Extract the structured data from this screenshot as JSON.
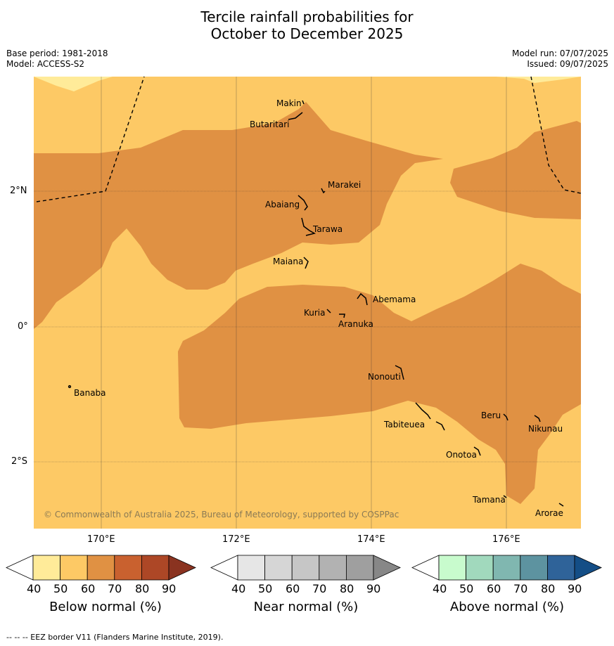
{
  "title_line1": "Tercile rainfall probabilities for",
  "title_line2": "October to December 2025",
  "base_period": "Base period: 1981-2018",
  "model": "Model: ACCESS-S2",
  "model_run": "Model run: 07/07/2025",
  "issued": "Issued: 09/07/2025",
  "copyright": "© Commonwealth of Australia 2025, Bureau of Meteorology, supported by COSPPac",
  "footer": "--  --  -- EEZ border V11 (Flanders Marine Institute, 2019).",
  "axes": {
    "lon_ticks": [
      "170°E",
      "172°E",
      "174°E",
      "176°E"
    ],
    "lat_ticks": [
      "2°N",
      "0°",
      "2°S"
    ]
  },
  "places": [
    "Makin",
    "Butaritari",
    "Marakei",
    "Abaiang",
    "Tarawa",
    "Maiana",
    "Abemama",
    "Kuria",
    "Aranuka",
    "Nonouti",
    "Banaba",
    "Beru",
    "Nikunau",
    "Tabiteuea",
    "Onotoa",
    "Tamana",
    "Arorae"
  ],
  "colorbars": [
    {
      "label": "Below normal (%)",
      "ticks": [
        "40",
        "50",
        "60",
        "70",
        "80",
        "90"
      ],
      "colors": [
        "#ffffff",
        "#ffeb99",
        "#fdc965",
        "#e09143",
        "#c9612f",
        "#ad4726",
        "#8a3320"
      ]
    },
    {
      "label": "Near normal (%)",
      "ticks": [
        "40",
        "50",
        "60",
        "70",
        "80",
        "90"
      ],
      "colors": [
        "#ffffff",
        "#e6e6e6",
        "#d6d6d6",
        "#c6c6c6",
        "#b2b2b2",
        "#9f9f9f",
        "#878787"
      ]
    },
    {
      "label": "Above normal (%)",
      "ticks": [
        "40",
        "50",
        "60",
        "70",
        "80",
        "90"
      ],
      "colors": [
        "#ffffff",
        "#c8fbcd",
        "#a1d9bd",
        "#80b7b0",
        "#5d93a0",
        "#2f6399",
        "#144e86"
      ]
    }
  ],
  "legend_colors": {
    "ocean_fill": "#fdc965",
    "light_fill": "#ffeb99",
    "dark_fill": "#e09143"
  }
}
